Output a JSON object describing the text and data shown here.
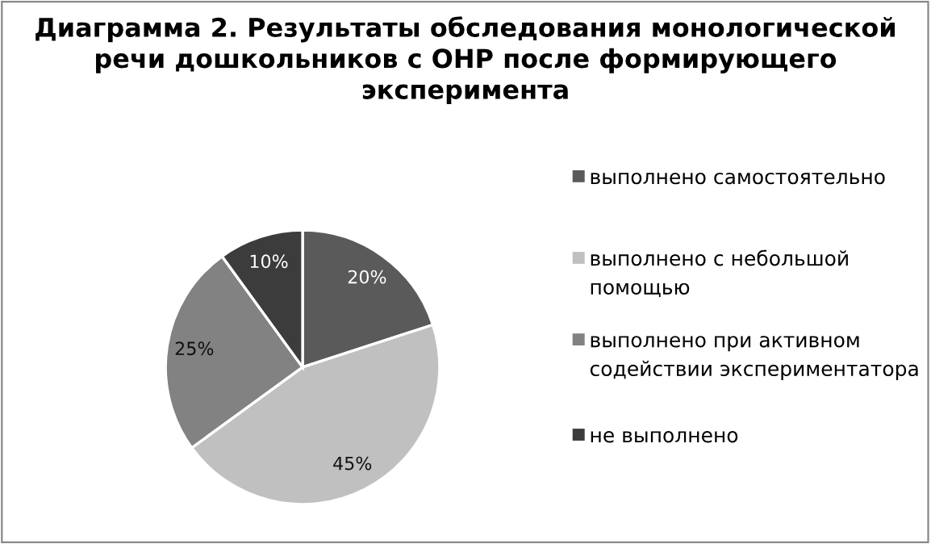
{
  "chart_data": {
    "type": "pie",
    "title": "Диаграмма 2. Результаты обследования монологической речи дошкольников с ОНР после формирующего эксперимента",
    "categories": [
      "выполнено самостоятельно",
      "выполнено с небольшой помощью",
      "выполнено при активном содействии экспериментатора",
      "не выполнено"
    ],
    "values": [
      20,
      45,
      25,
      10
    ],
    "colors": [
      "#5a5a5a",
      "#c0c0c0",
      "#828282",
      "#3c3c3c"
    ],
    "value_labels": [
      "20%",
      "45%",
      "25%",
      "10%"
    ],
    "legend": "right"
  }
}
